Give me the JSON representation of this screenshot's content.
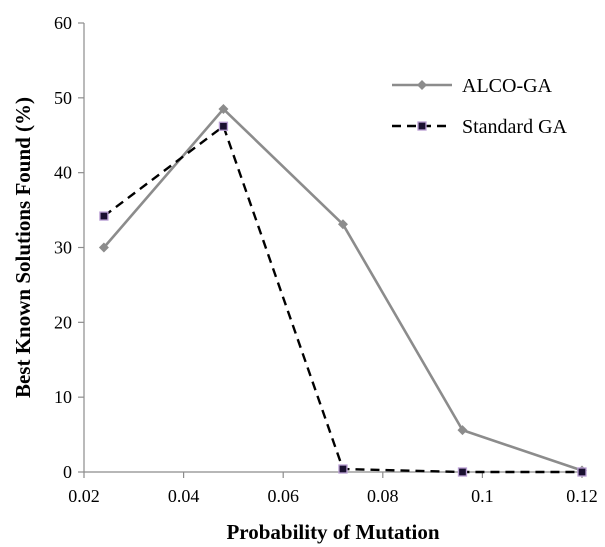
{
  "chart_data": {
    "type": "line",
    "title": "",
    "xlabel": "Probability of Mutation",
    "ylabel": "Best Known Solutions Found (%)",
    "xlim": [
      0.02,
      0.12
    ],
    "ylim": [
      0,
      60
    ],
    "x_ticks": [
      "0.02",
      "0.04",
      "0.06",
      "0.08",
      "0.1",
      "0.12"
    ],
    "y_ticks": [
      "0",
      "10",
      "20",
      "30",
      "40",
      "50",
      "60"
    ],
    "grid": false,
    "legend_position": "top-right",
    "series": [
      {
        "name": "ALCO-GA",
        "style": "solid",
        "marker": "diamond",
        "color": "#8c8c8c",
        "x": [
          0.024,
          0.048,
          0.072,
          0.096,
          0.12
        ],
        "y": [
          30,
          48.5,
          33.1,
          5.6,
          0.2
        ]
      },
      {
        "name": "Standard GA",
        "style": "dashed",
        "marker": "square",
        "color": "#000000",
        "marker_fill": "#1a1030",
        "marker_edge": "#b99fd3",
        "x": [
          0.024,
          0.048,
          0.072,
          0.096,
          0.12
        ],
        "y": [
          34.2,
          46.2,
          0.4,
          0,
          0
        ]
      }
    ]
  }
}
